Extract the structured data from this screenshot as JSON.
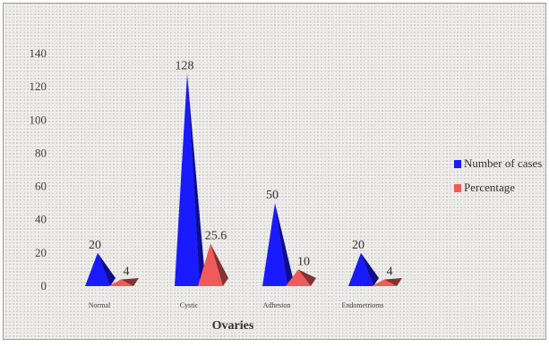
{
  "chart_data": {
    "type": "bar",
    "style": "3d-pyramid",
    "title": "",
    "xlabel": "Ovaries",
    "ylabel": "",
    "ylim": [
      0,
      140
    ],
    "yticks": [
      "0",
      "20",
      "40",
      "60",
      "80",
      "100",
      "120",
      "140"
    ],
    "categories": [
      "Normal",
      "Cystic",
      "Adhesion",
      "Endometrioms"
    ],
    "series": [
      {
        "name": "Number of cases",
        "color": "#1a1aff",
        "values": [
          20,
          128,
          50,
          20
        ],
        "labels": [
          "20",
          "128",
          "50",
          "20"
        ]
      },
      {
        "name": "Percentage",
        "color": "#f05a5a",
        "values": [
          4,
          25.6,
          10,
          4
        ],
        "labels": [
          "4",
          "25.6",
          "10",
          "4"
        ]
      }
    ],
    "legend": "right",
    "grid": false
  }
}
